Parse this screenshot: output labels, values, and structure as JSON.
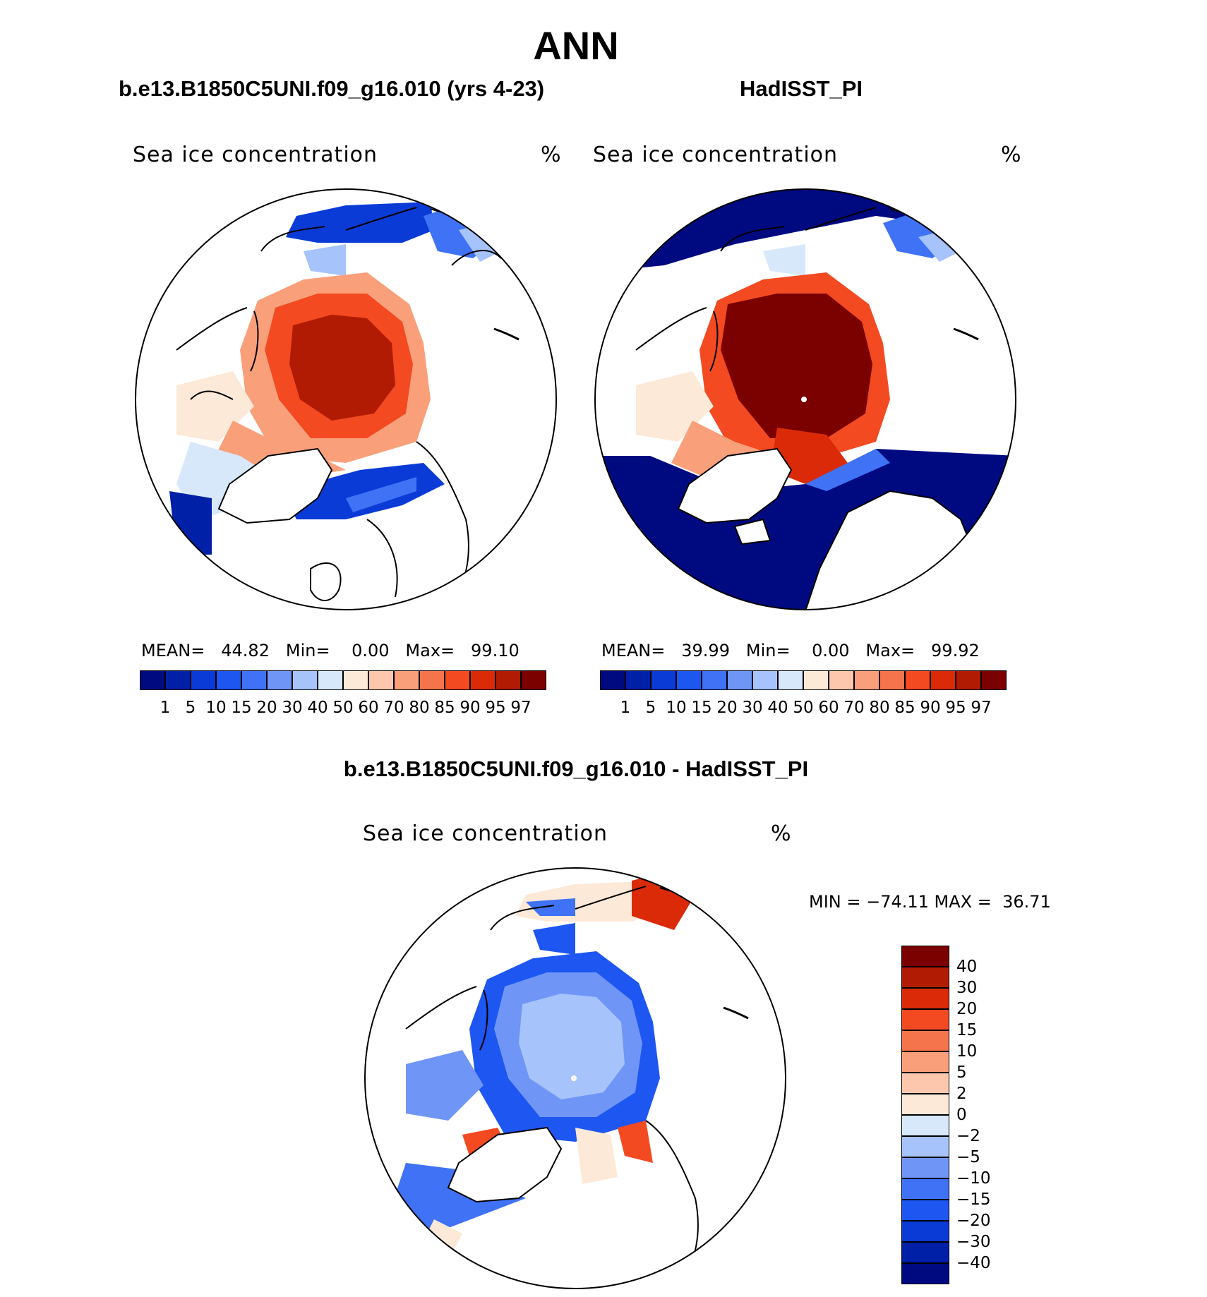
{
  "figure": {
    "title": "ANN",
    "panel_left": {
      "subtitle": "b.e13.B1850C5UNI.f09_g16.010 (yrs 4-23)",
      "variable": "Sea ice concentration",
      "units": "%",
      "mean_label": "MEAN=",
      "mean_value": "44.82",
      "min_label": "Min=",
      "min_value": "0.00",
      "max_label": "Max=",
      "max_value": "99.10"
    },
    "panel_right": {
      "subtitle": "HadISST_PI",
      "variable": "Sea ice concentration",
      "units": "%",
      "mean_label": "MEAN=",
      "mean_value": "39.99",
      "min_label": "Min=",
      "min_value": "0.00",
      "max_label": "Max=",
      "max_value": "99.92"
    },
    "panel_diff": {
      "subtitle": "b.e13.B1850C5UNI.f09_g16.010 - HadISST_PI",
      "variable": "Sea ice concentration",
      "units": "%",
      "minmax_text": "MIN = −74.11 MAX =  36.71"
    }
  },
  "colorbar_concentration": {
    "ticks": [
      "1",
      "5",
      "10",
      "15",
      "20",
      "30",
      "40",
      "50",
      "60",
      "70",
      "80",
      "85",
      "90",
      "95",
      "97"
    ],
    "colors": [
      "#000a80",
      "#0020a8",
      "#0a3bd6",
      "#1d56f0",
      "#3f72f5",
      "#6f95f7",
      "#a6c3fb",
      "#d7e8fb",
      "#fde9d7",
      "#fcc7ac",
      "#f9a07a",
      "#f6744b",
      "#f34a22",
      "#db2a08",
      "#b11b04",
      "#7b0000"
    ]
  },
  "colorbar_difference": {
    "ticks": [
      "40",
      "30",
      "20",
      "15",
      "10",
      "5",
      "2",
      "0",
      "−2",
      "−5",
      "−10",
      "−15",
      "−20",
      "−30",
      "−40"
    ],
    "colors": [
      "#7b0000",
      "#b11b04",
      "#db2a08",
      "#f34a22",
      "#f6744b",
      "#f9a07a",
      "#fcc7ac",
      "#fde9d7",
      "#d7e8fb",
      "#a6c3fb",
      "#6f95f7",
      "#3f72f5",
      "#1d56f0",
      "#0a3bd6",
      "#0020a8",
      "#000a80"
    ]
  }
}
